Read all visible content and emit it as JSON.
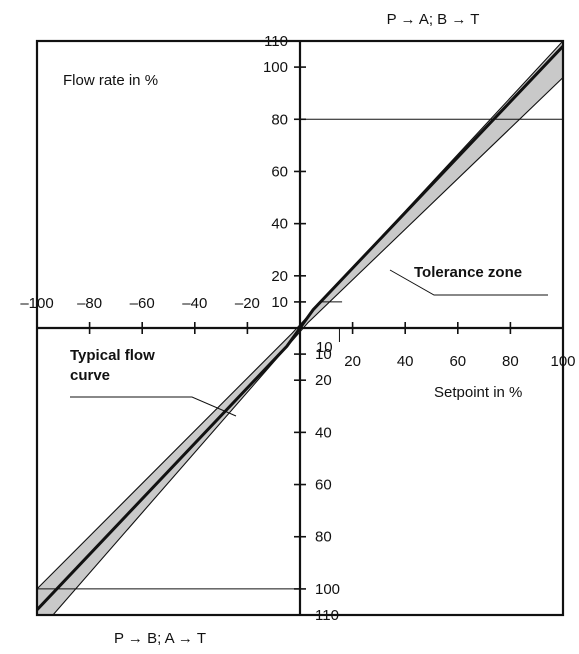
{
  "chart_data": {
    "type": "line",
    "title_top": "P → A; B → T",
    "title_bottom": "P → B; A → T",
    "ylabel": "Flow rate in %",
    "xlabel": "Setpoint in %",
    "xlim": [
      -100,
      100
    ],
    "ylim": [
      -110,
      110
    ],
    "x_ticks": [
      {
        "value": -100,
        "label": "–100"
      },
      {
        "value": -80,
        "label": "–80"
      },
      {
        "value": -60,
        "label": "–60"
      },
      {
        "value": -40,
        "label": "–40"
      },
      {
        "value": -20,
        "label": "–20"
      },
      {
        "value": 20,
        "label": "20"
      },
      {
        "value": 40,
        "label": "40"
      },
      {
        "value": 60,
        "label": "60"
      },
      {
        "value": 80,
        "label": "80"
      },
      {
        "value": 100,
        "label": "100"
      }
    ],
    "y_ticks_positive": [
      {
        "value": 110,
        "label": "110"
      },
      {
        "value": 100,
        "label": "100"
      },
      {
        "value": 80,
        "label": "80"
      },
      {
        "value": 60,
        "label": "60"
      },
      {
        "value": 40,
        "label": "40"
      },
      {
        "value": 20,
        "label": "20"
      },
      {
        "value": 10,
        "label": "10"
      }
    ],
    "y_ticks_negative": [
      {
        "value": -10,
        "label": "10"
      },
      {
        "value": -20,
        "label": "20"
      },
      {
        "value": -40,
        "label": "40"
      },
      {
        "value": -60,
        "label": "60"
      },
      {
        "value": -80,
        "label": "80"
      },
      {
        "value": -100,
        "label": "100"
      },
      {
        "value": -110,
        "label": "110"
      }
    ],
    "small_x_labels": [
      {
        "value": 10,
        "label": "10"
      }
    ],
    "series": [
      {
        "x": [
          -100,
          -5,
          5,
          100
        ],
        "y": [
          -108,
          -7,
          7,
          108
        ]
      }
    ],
    "tolerance_zone": {
      "upper": [
        [
          -100,
          -100
        ],
        [
          -3,
          -2
        ],
        [
          100,
          110
        ]
      ],
      "lower": [
        [
          -100,
          -117
        ],
        [
          3,
          2
        ],
        [
          100,
          96
        ]
      ]
    },
    "reference_lines": [
      {
        "y": 80,
        "x_from": 0,
        "x_to": 100
      },
      {
        "y": 10,
        "x_from": 8,
        "x_to": 16
      },
      {
        "y": -100,
        "x_from": -100,
        "x_to": 0
      }
    ],
    "annotations": {
      "tolerance_zone": "Tolerance zone",
      "typical_flow_curve_line1": "Typical flow",
      "typical_flow_curve_line2": "curve"
    }
  }
}
